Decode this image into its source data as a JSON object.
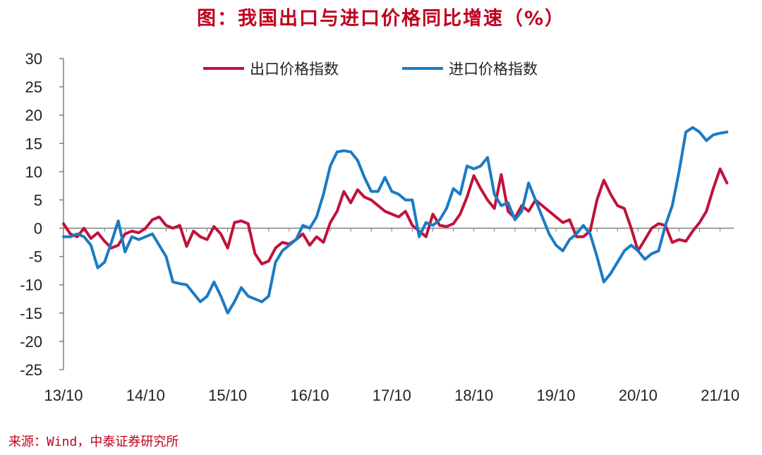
{
  "title": "图：我国出口与进口价格同比增速（%）",
  "source": "来源：Wind，中泰证券研究所",
  "colors": {
    "export": "#c0123c",
    "import": "#1a7bc4",
    "title": "#c0001d",
    "axis": "#7f7f7f"
  },
  "chart_data": {
    "type": "line",
    "title": "图：我国出口与进口价格同比增速（%）",
    "xlabel": "",
    "ylabel": "",
    "ylim": [
      -25,
      30
    ],
    "yticks": [
      30,
      25,
      20,
      15,
      10,
      5,
      0,
      -5,
      -10,
      -15,
      -20,
      -25
    ],
    "xticks": [
      "13/10",
      "14/10",
      "15/10",
      "16/10",
      "17/10",
      "18/10",
      "19/10",
      "20/10",
      "21/10"
    ],
    "x_range": [
      "2013-10",
      "2021-12"
    ],
    "grid": false,
    "legend": "top-center",
    "series": [
      {
        "name": "出口价格指数",
        "color": "#c0123c",
        "points": [
          [
            "2013-10",
            0.8
          ],
          [
            "2013-11",
            -1.0
          ],
          [
            "2013-12",
            -1.5
          ],
          [
            "2014-01",
            0.0
          ],
          [
            "2014-02",
            -1.8
          ],
          [
            "2014-03",
            -0.8
          ],
          [
            "2014-04",
            -2.3
          ],
          [
            "2014-05",
            -3.5
          ],
          [
            "2014-06",
            -3.0
          ],
          [
            "2014-07",
            -1.0
          ],
          [
            "2014-08",
            -0.5
          ],
          [
            "2014-09",
            -0.8
          ],
          [
            "2014-10",
            0.0
          ],
          [
            "2014-11",
            1.5
          ],
          [
            "2014-12",
            2.0
          ],
          [
            "2015-01",
            0.5
          ],
          [
            "2015-02",
            0.0
          ],
          [
            "2015-03",
            0.5
          ],
          [
            "2015-04",
            -3.2
          ],
          [
            "2015-05",
            -0.5
          ],
          [
            "2015-06",
            -1.5
          ],
          [
            "2015-07",
            -2.0
          ],
          [
            "2015-08",
            0.3
          ],
          [
            "2015-09",
            -1.0
          ],
          [
            "2015-10",
            -3.5
          ],
          [
            "2015-11",
            1.0
          ],
          [
            "2015-12",
            1.3
          ],
          [
            "2016-01",
            0.8
          ],
          [
            "2016-02",
            -4.5
          ],
          [
            "2016-03",
            -6.3
          ],
          [
            "2016-04",
            -5.8
          ],
          [
            "2016-05",
            -3.5
          ],
          [
            "2016-06",
            -2.5
          ],
          [
            "2016-07",
            -2.8
          ],
          [
            "2016-08",
            -2.0
          ],
          [
            "2016-09",
            -1.0
          ],
          [
            "2016-10",
            -3.0
          ],
          [
            "2016-11",
            -1.5
          ],
          [
            "2016-12",
            -2.5
          ],
          [
            "2017-01",
            1.0
          ],
          [
            "2017-02",
            3.0
          ],
          [
            "2017-03",
            6.5
          ],
          [
            "2017-04",
            4.5
          ],
          [
            "2017-05",
            6.8
          ],
          [
            "2017-06",
            5.5
          ],
          [
            "2017-07",
            5.0
          ],
          [
            "2017-08",
            4.0
          ],
          [
            "2017-09",
            3.0
          ],
          [
            "2017-10",
            2.5
          ],
          [
            "2017-11",
            2.0
          ],
          [
            "2017-12",
            3.0
          ],
          [
            "2018-01",
            0.5
          ],
          [
            "2018-02",
            -0.5
          ],
          [
            "2018-03",
            -1.5
          ],
          [
            "2018-04",
            2.5
          ],
          [
            "2018-05",
            0.5
          ],
          [
            "2018-06",
            0.3
          ],
          [
            "2018-07",
            0.8
          ],
          [
            "2018-08",
            2.5
          ],
          [
            "2018-09",
            5.5
          ],
          [
            "2018-10",
            9.3
          ],
          [
            "2018-11",
            7.0
          ],
          [
            "2018-12",
            5.0
          ],
          [
            "2019-01",
            3.5
          ],
          [
            "2019-02",
            9.5
          ],
          [
            "2019-03",
            3.0
          ],
          [
            "2019-04",
            1.8
          ],
          [
            "2019-05",
            4.0
          ],
          [
            "2019-06",
            3.0
          ],
          [
            "2019-07",
            5.0
          ],
          [
            "2019-08",
            4.0
          ],
          [
            "2019-09",
            3.0
          ],
          [
            "2019-10",
            2.0
          ],
          [
            "2019-11",
            1.0
          ],
          [
            "2019-12",
            1.5
          ],
          [
            "2020-01",
            -1.5
          ],
          [
            "2020-02",
            -1.5
          ],
          [
            "2020-03",
            -0.5
          ],
          [
            "2020-04",
            5.0
          ],
          [
            "2020-05",
            8.5
          ],
          [
            "2020-06",
            6.0
          ],
          [
            "2020-07",
            4.0
          ],
          [
            "2020-08",
            3.5
          ],
          [
            "2020-09",
            0.0
          ],
          [
            "2020-10",
            -4.0
          ],
          [
            "2020-11",
            -2.0
          ],
          [
            "2020-12",
            0.0
          ],
          [
            "2021-01",
            0.8
          ],
          [
            "2021-02",
            0.5
          ],
          [
            "2021-03",
            -2.5
          ],
          [
            "2021-04",
            -2.0
          ],
          [
            "2021-05",
            -2.3
          ],
          [
            "2021-06",
            -0.5
          ],
          [
            "2021-07",
            1.0
          ],
          [
            "2021-08",
            3.0
          ],
          [
            "2021-09",
            7.0
          ],
          [
            "2021-10",
            10.5
          ],
          [
            "2021-11",
            8.0
          ]
        ]
      },
      {
        "name": "进口价格指数",
        "color": "#1a7bc4",
        "points": [
          [
            "2013-10",
            -1.5
          ],
          [
            "2013-11",
            -1.5
          ],
          [
            "2013-12",
            -1.0
          ],
          [
            "2014-01",
            -1.5
          ],
          [
            "2014-02",
            -3.0
          ],
          [
            "2014-03",
            -7.0
          ],
          [
            "2014-04",
            -6.0
          ],
          [
            "2014-05",
            -2.5
          ],
          [
            "2014-06",
            1.3
          ],
          [
            "2014-07",
            -4.2
          ],
          [
            "2014-08",
            -1.5
          ],
          [
            "2014-09",
            -2.0
          ],
          [
            "2014-10",
            -1.5
          ],
          [
            "2014-11",
            -1.0
          ],
          [
            "2014-12",
            -3.0
          ],
          [
            "2015-01",
            -5.0
          ],
          [
            "2015-02",
            -9.5
          ],
          [
            "2015-03",
            -9.8
          ],
          [
            "2015-04",
            -10.0
          ],
          [
            "2015-05",
            -11.5
          ],
          [
            "2015-06",
            -13.0
          ],
          [
            "2015-07",
            -12.0
          ],
          [
            "2015-08",
            -9.5
          ],
          [
            "2015-09",
            -12.0
          ],
          [
            "2015-10",
            -15.0
          ],
          [
            "2015-11",
            -13.0
          ],
          [
            "2015-12",
            -10.5
          ],
          [
            "2016-01",
            -12.0
          ],
          [
            "2016-02",
            -12.5
          ],
          [
            "2016-03",
            -13.0
          ],
          [
            "2016-04",
            -12.0
          ],
          [
            "2016-05",
            -6.0
          ],
          [
            "2016-06",
            -4.0
          ],
          [
            "2016-07",
            -3.0
          ],
          [
            "2016-08",
            -2.0
          ],
          [
            "2016-09",
            0.5
          ],
          [
            "2016-10",
            0.0
          ],
          [
            "2016-11",
            2.0
          ],
          [
            "2016-12",
            6.0
          ],
          [
            "2017-01",
            11.0
          ],
          [
            "2017-02",
            13.5
          ],
          [
            "2017-03",
            13.7
          ],
          [
            "2017-04",
            13.5
          ],
          [
            "2017-05",
            12.0
          ],
          [
            "2017-06",
            9.0
          ],
          [
            "2017-07",
            6.5
          ],
          [
            "2017-08",
            6.5
          ],
          [
            "2017-09",
            9.0
          ],
          [
            "2017-10",
            6.5
          ],
          [
            "2017-11",
            6.0
          ],
          [
            "2017-12",
            5.0
          ],
          [
            "2018-01",
            5.0
          ],
          [
            "2018-02",
            -1.5
          ],
          [
            "2018-03",
            1.0
          ],
          [
            "2018-04",
            0.5
          ],
          [
            "2018-05",
            1.5
          ],
          [
            "2018-06",
            3.5
          ],
          [
            "2018-07",
            7.0
          ],
          [
            "2018-08",
            6.0
          ],
          [
            "2018-09",
            11.0
          ],
          [
            "2018-10",
            10.5
          ],
          [
            "2018-11",
            11.0
          ],
          [
            "2018-12",
            12.5
          ],
          [
            "2019-01",
            6.0
          ],
          [
            "2019-02",
            4.0
          ],
          [
            "2019-03",
            4.5
          ],
          [
            "2019-04",
            1.5
          ],
          [
            "2019-05",
            3.0
          ],
          [
            "2019-06",
            8.0
          ],
          [
            "2019-07",
            5.0
          ],
          [
            "2019-08",
            2.0
          ],
          [
            "2019-09",
            -1.0
          ],
          [
            "2019-10",
            -3.0
          ],
          [
            "2019-11",
            -4.0
          ],
          [
            "2019-12",
            -2.0
          ],
          [
            "2020-01",
            -1.0
          ],
          [
            "2020-02",
            0.5
          ],
          [
            "2020-03",
            -1.0
          ],
          [
            "2020-04",
            -5.0
          ],
          [
            "2020-05",
            -9.5
          ],
          [
            "2020-06",
            -8.0
          ],
          [
            "2020-07",
            -6.0
          ],
          [
            "2020-08",
            -4.0
          ],
          [
            "2020-09",
            -3.0
          ],
          [
            "2020-10",
            -4.0
          ],
          [
            "2020-11",
            -5.5
          ],
          [
            "2020-12",
            -4.5
          ],
          [
            "2021-01",
            -4.0
          ],
          [
            "2021-02",
            0.5
          ],
          [
            "2021-03",
            4.0
          ],
          [
            "2021-04",
            10.0
          ],
          [
            "2021-05",
            17.0
          ],
          [
            "2021-06",
            17.8
          ],
          [
            "2021-07",
            17.0
          ],
          [
            "2021-08",
            15.5
          ],
          [
            "2021-09",
            16.5
          ],
          [
            "2021-10",
            16.8
          ],
          [
            "2021-11",
            17.0
          ]
        ]
      }
    ]
  }
}
